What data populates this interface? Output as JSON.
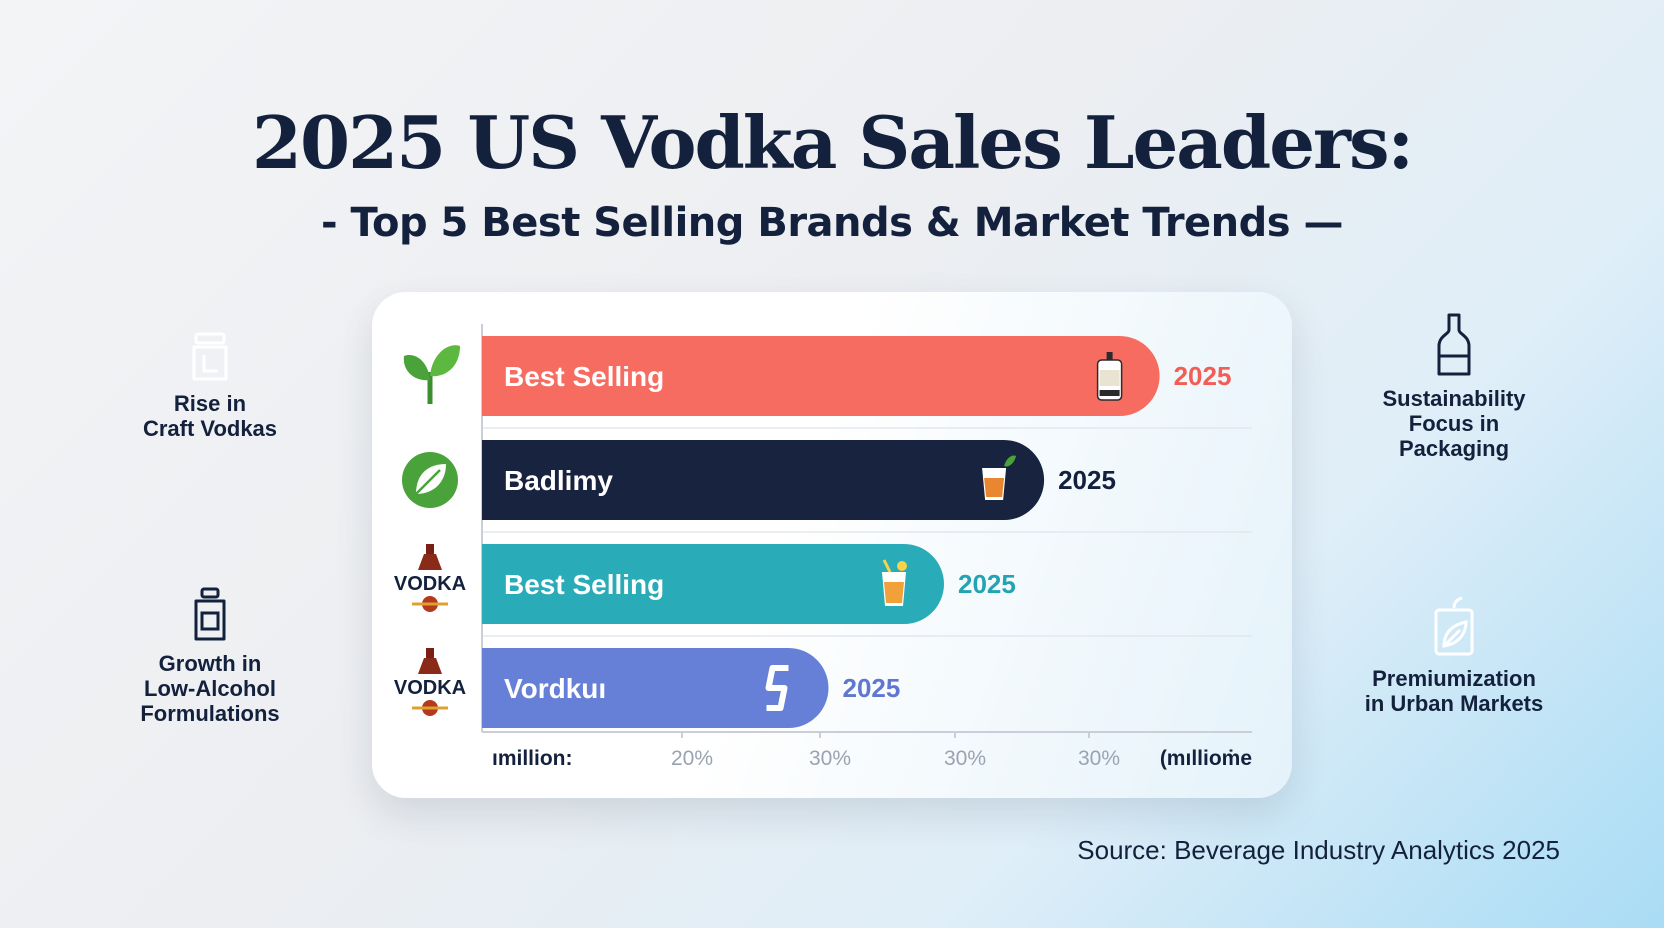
{
  "title": "2025 US Vodka Sales Leaders:",
  "subtitle": "- Top 5 Best Selling Brands & Market Trends —",
  "source": "Source: Beverage Industry Analytics 2025",
  "trends": [
    {
      "label": "Rise in\nCraft Vodkas",
      "icon": "jar-icon",
      "style": "dark"
    },
    {
      "label": "Growth in\nLow-Alcohol\nFormulations",
      "icon": "bottle-jar-icon",
      "style": "light"
    },
    {
      "label": "Sustainability\nFocus in\nPackaging",
      "icon": "bottle-icon",
      "style": "light"
    },
    {
      "label": "Premiumization\nin Urban Markets",
      "icon": "leaf-bag-icon",
      "style": "dark"
    }
  ],
  "chart_data": {
    "type": "bar",
    "orientation": "horizontal",
    "categories": [
      "Best Selling",
      "Badlimy",
      "Best Selling",
      "Vordkuı"
    ],
    "values": [
      88,
      73,
      60,
      45
    ],
    "value_labels": [
      "2025",
      "2025",
      "2025",
      "2025"
    ],
    "colors": [
      "#f76c61",
      "#18233f",
      "#2aabb8",
      "#6680d8"
    ],
    "value_label_colors": [
      "#f25e55",
      "#14213d",
      "#23a4b3",
      "#6077d2"
    ],
    "row_icons": [
      "sprout-icon",
      "leaf-icon",
      "vodka-bottle-icon",
      "vodka-bottle-icon"
    ],
    "bar_icons": [
      "bottle-icon",
      "cocktail-glass-icon",
      "juice-glass-icon",
      "s-logo-icon"
    ],
    "row_icon_texts": [
      "",
      "",
      "VODKA",
      "VODKA"
    ],
    "xtick_labels": [
      "ımillion:",
      "20%",
      "30%",
      "30%",
      "30%",
      "(mıllioṁe"
    ],
    "xlim": [
      0,
      100
    ],
    "grid": true
  }
}
